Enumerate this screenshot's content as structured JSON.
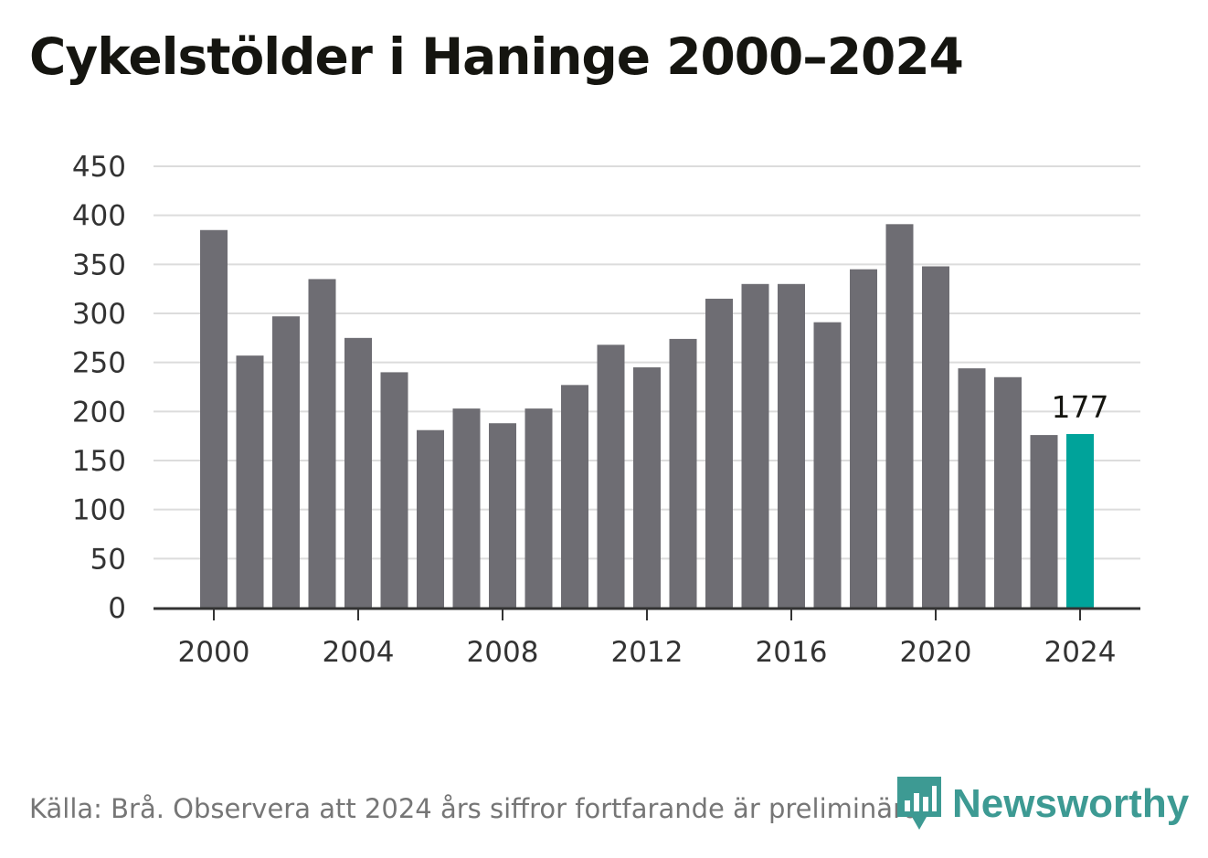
{
  "title": "Cykelstölder i Haninge 2000–2024",
  "source": "Källa: Brå. Observera att 2024 års siffror fortfarande är preliminära.",
  "logo": {
    "text": "Newsworthy",
    "icon": "newsworthy-logo-icon"
  },
  "colors": {
    "bar": "#6e6d73",
    "highlight": "#00a39a",
    "grid": "#dcdcdc",
    "axis": "#333333",
    "text": "#333333",
    "brand": "#3d9a93"
  },
  "chart_data": {
    "type": "bar",
    "title": "Cykelstölder i Haninge 2000–2024",
    "xlabel": "",
    "ylabel": "",
    "categories": [
      2000,
      2001,
      2002,
      2003,
      2004,
      2005,
      2006,
      2007,
      2008,
      2009,
      2010,
      2011,
      2012,
      2013,
      2014,
      2015,
      2016,
      2017,
      2018,
      2019,
      2020,
      2021,
      2022,
      2023,
      2024
    ],
    "values": [
      385,
      257,
      297,
      335,
      275,
      240,
      181,
      203,
      188,
      203,
      227,
      268,
      245,
      274,
      315,
      330,
      330,
      291,
      345,
      391,
      348,
      244,
      235,
      176,
      177
    ],
    "highlight_index": 24,
    "highlight_label": "177",
    "x_ticks": [
      "2000",
      "2004",
      "2008",
      "2012",
      "2016",
      "2020",
      "2024"
    ],
    "y_ticks": [
      "0",
      "50",
      "100",
      "150",
      "200",
      "250",
      "300",
      "350",
      "400",
      "450"
    ],
    "ylim": [
      0,
      450
    ],
    "grid": true,
    "legend": "none"
  }
}
